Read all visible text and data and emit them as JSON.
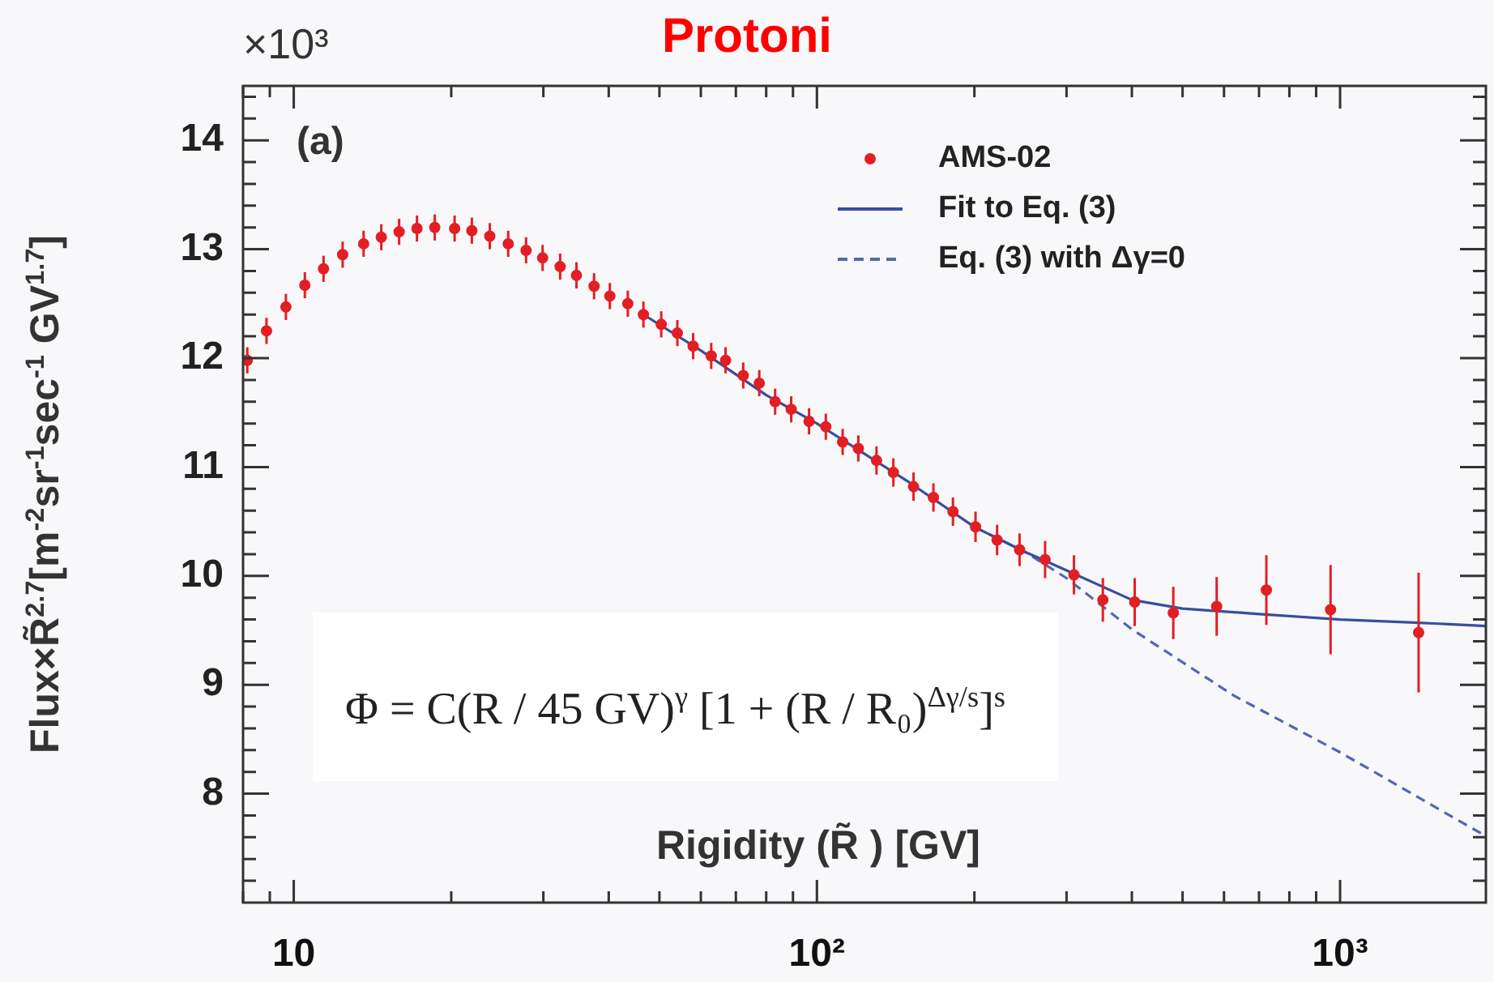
{
  "chart_data": {
    "type": "scatter",
    "title": "Protoni",
    "xlabel": "Rigidity (R̃ ) [GV]",
    "ylabel": "Flux×R̃$^{2.7}$[m$^{-2}$sr$^{-1}$sec$^{-1}$ GV$^{1.7}$]",
    "annotations": [
      "×10³",
      "(a)",
      "Φ = C(R / 45 GV)$^{γ}$ [1 + (R / R₀)$^{Δγ/s}$]$^{s}$"
    ],
    "log": "x",
    "grid": false,
    "legend": "top right",
    "xlim": [
      8,
      1900
    ],
    "xticks": [
      {
        "value": 8,
        "label": null
      },
      {
        "value": 9,
        "label": null
      },
      {
        "value": 10,
        "label": "10"
      },
      {
        "value": 20,
        "label": null
      },
      {
        "value": 30,
        "label": null
      },
      {
        "value": 40,
        "label": null
      },
      {
        "value": 50,
        "label": null
      },
      {
        "value": 60,
        "label": null
      },
      {
        "value": 70,
        "label": null
      },
      {
        "value": 80,
        "label": null
      },
      {
        "value": 90,
        "label": null
      },
      {
        "value": 100,
        "label": "10²"
      },
      {
        "value": 200,
        "label": null
      },
      {
        "value": 300,
        "label": null
      },
      {
        "value": 400,
        "label": null
      },
      {
        "value": 500,
        "label": null
      },
      {
        "value": 600,
        "label": null
      },
      {
        "value": 700,
        "label": null
      },
      {
        "value": 800,
        "label": null
      },
      {
        "value": 900,
        "label": null
      },
      {
        "value": 1000,
        "label": "10³"
      }
    ],
    "ylim": [
      7,
      14.5
    ],
    "yticks": [
      {
        "value": 7.2,
        "label": null
      },
      {
        "value": 7.4,
        "label": null
      },
      {
        "value": 7.6,
        "label": null
      },
      {
        "value": 7.8,
        "label": null
      },
      8,
      {
        "value": 8.2,
        "label": null
      },
      {
        "value": 8.4,
        "label": null
      },
      {
        "value": 8.6,
        "label": null
      },
      {
        "value": 8.8,
        "label": null
      },
      9,
      {
        "value": 9.2,
        "label": null
      },
      {
        "value": 9.4,
        "label": null
      },
      {
        "value": 9.6,
        "label": null
      },
      {
        "value": 9.8,
        "label": null
      },
      10,
      {
        "value": 10.2,
        "label": null
      },
      {
        "value": 10.4,
        "label": null
      },
      {
        "value": 10.6,
        "label": null
      },
      {
        "value": 10.8,
        "label": null
      },
      11,
      {
        "value": 11.2,
        "label": null
      },
      {
        "value": 11.4,
        "label": null
      },
      {
        "value": 11.6,
        "label": null
      },
      {
        "value": 11.8,
        "label": null
      },
      12,
      {
        "value": 12.2,
        "label": null
      },
      {
        "value": 12.4,
        "label": null
      },
      {
        "value": 12.6,
        "label": null
      },
      {
        "value": 12.8,
        "label": null
      },
      13,
      {
        "value": 13.2,
        "label": null
      },
      {
        "value": 13.4,
        "label": null
      },
      {
        "value": 13.6,
        "label": null
      },
      {
        "value": 13.8,
        "label": null
      },
      14,
      {
        "value": 14.2,
        "label": null
      },
      {
        "value": 14.4,
        "label": null
      }
    ],
    "series": [
      {
        "name": "AMS-02",
        "marker": "circle",
        "color": "#e31e24",
        "x": [
          8.15,
          8.87,
          9.66,
          10.5,
          11.4,
          12.4,
          13.6,
          14.7,
          15.9,
          17.2,
          18.6,
          20.3,
          21.9,
          23.7,
          25.7,
          27.8,
          29.9,
          32.3,
          34.7,
          37.5,
          40.2,
          43.5,
          46.6,
          50.4,
          54.1,
          58,
          62.8,
          66.9,
          72.3,
          77.6,
          83.2,
          89.3,
          96.6,
          104,
          112,
          120,
          130,
          140,
          153,
          167,
          182,
          201,
          221,
          244,
          273,
          310,
          352,
          405,
          480,
          581,
          723,
          959,
          1413
        ],
        "values": [
          11.98,
          12.25,
          12.47,
          12.67,
          12.82,
          12.95,
          13.05,
          13.11,
          13.16,
          13.19,
          13.2,
          13.19,
          13.17,
          13.12,
          13.05,
          12.99,
          12.92,
          12.84,
          12.76,
          12.66,
          12.57,
          12.5,
          12.4,
          12.31,
          12.23,
          12.11,
          12.02,
          11.98,
          11.84,
          11.77,
          11.6,
          11.53,
          11.42,
          11.37,
          11.23,
          11.17,
          11.06,
          10.95,
          10.82,
          10.72,
          10.59,
          10.45,
          10.33,
          10.24,
          10.15,
          10.01,
          9.78,
          9.76,
          9.66,
          9.72,
          9.87,
          9.69,
          9.48
        ],
        "errors": [
          0.12,
          0.12,
          0.12,
          0.12,
          0.12,
          0.12,
          0.12,
          0.12,
          0.12,
          0.12,
          0.12,
          0.12,
          0.12,
          0.12,
          0.12,
          0.12,
          0.12,
          0.12,
          0.12,
          0.12,
          0.12,
          0.12,
          0.12,
          0.12,
          0.12,
          0.12,
          0.12,
          0.12,
          0.12,
          0.12,
          0.12,
          0.12,
          0.12,
          0.12,
          0.12,
          0.12,
          0.13,
          0.13,
          0.13,
          0.13,
          0.13,
          0.14,
          0.14,
          0.15,
          0.17,
          0.18,
          0.2,
          0.22,
          0.24,
          0.27,
          0.32,
          0.41,
          0.55
        ]
      },
      {
        "name": "Fit to Eq. (3)",
        "type": "line",
        "marker": "none",
        "line_style": "solid",
        "color": "#3a4d9f",
        "x": [
          46.6,
          60,
          80,
          100,
          150,
          200,
          250,
          300,
          400,
          500,
          700,
          1000,
          1413,
          1900
        ],
        "values": [
          12.4,
          12.07,
          11.66,
          11.4,
          10.86,
          10.45,
          10.22,
          10.05,
          9.78,
          9.7,
          9.65,
          9.6,
          9.57,
          9.54
        ]
      },
      {
        "name": "Eq. (3) with Δγ=0",
        "type": "line",
        "marker": "none",
        "line_style": "dashed",
        "color": "#5566b3",
        "x": [
          200,
          250,
          300,
          400,
          627,
          1000,
          1900
        ],
        "values": [
          10.45,
          10.22,
          9.98,
          9.51,
          8.9,
          8.38,
          7.61
        ]
      }
    ]
  }
}
